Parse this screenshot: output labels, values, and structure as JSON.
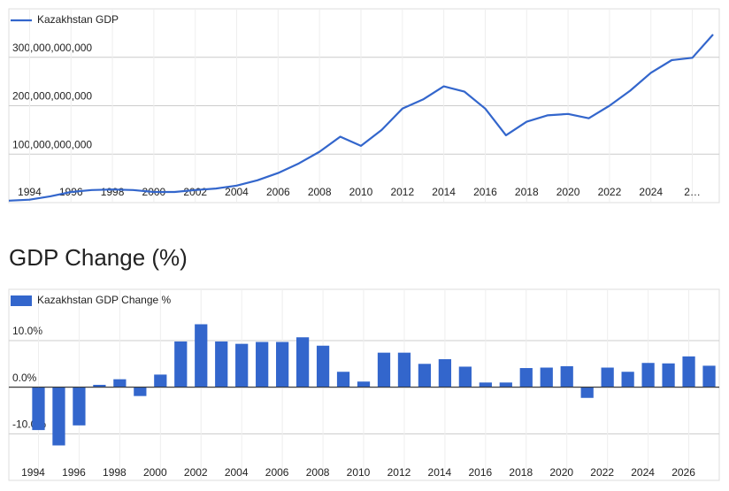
{
  "chart_data": [
    {
      "type": "line",
      "x": [
        1993,
        1994,
        1995,
        1996,
        1997,
        1998,
        1999,
        2000,
        2001,
        2002,
        2003,
        2004,
        2005,
        2006,
        2007,
        2008,
        2009,
        2010,
        2011,
        2012,
        2013,
        2014,
        2015,
        2016,
        2017,
        2018,
        2019,
        2020,
        2021,
        2022,
        2023,
        2024,
        2025,
        2026,
        2027
      ],
      "series": [
        {
          "name": "Kazakhstan GDP",
          "color": "#3366cc",
          "values": [
            4000000000,
            6000000000,
            13000000000,
            22000000000,
            26000000000,
            27000000000,
            26000000000,
            22000000000,
            22000000000,
            26000000000,
            29000000000,
            35000000000,
            46000000000,
            61000000000,
            81000000000,
            105000000000,
            136000000000,
            117000000000,
            150000000000,
            194000000000,
            213000000000,
            240000000000,
            229000000000,
            194000000000,
            139000000000,
            167000000000,
            180000000000,
            183000000000,
            174000000000,
            200000000000,
            231000000000,
            268000000000,
            294000000000,
            299000000000,
            347000000000
          ]
        }
      ],
      "xlim": [
        1993,
        2027.3
      ],
      "xticks": [
        1994,
        1996,
        1998,
        2000,
        2002,
        2004,
        2006,
        2008,
        2010,
        2012,
        2014,
        2016,
        2018,
        2020,
        2022,
        2024,
        {
          "value": 2026,
          "label": "2…"
        }
      ],
      "ylim": [
        0,
        400000000000
      ],
      "yticks": [
        {
          "value": 100000000000,
          "label": "100,000,000,000"
        },
        {
          "value": 200000000000,
          "label": "200,000,000,000"
        },
        {
          "value": 300000000000,
          "label": "300,000,000,000"
        }
      ],
      "grid": true,
      "legend": "top-left"
    },
    {
      "type": "bar",
      "title": "GDP Change (%)",
      "categories": [
        "1994",
        null,
        "1996",
        null,
        "1998",
        null,
        "2000",
        null,
        "2002",
        null,
        "2004",
        null,
        "2006",
        null,
        "2008",
        null,
        "2010",
        null,
        "2012",
        null,
        "2014",
        null,
        "2016",
        null,
        "2018",
        null,
        "2020",
        null,
        "2022",
        null,
        "2024",
        null,
        "2026",
        null
      ],
      "series": [
        {
          "name": "Kazakhstan GDP Change %",
          "color": "#3366cc",
          "values": [
            -9.2,
            -12.5,
            -8.2,
            0.5,
            1.7,
            -1.9,
            2.7,
            9.8,
            13.5,
            9.8,
            9.3,
            9.7,
            9.7,
            10.7,
            8.9,
            3.3,
            1.2,
            7.4,
            7.4,
            5.0,
            6.0,
            4.4,
            1.0,
            1.0,
            4.1,
            4.2,
            4.5,
            -2.3,
            4.2,
            3.3,
            5.2,
            5.1,
            6.6,
            4.6
          ]
        }
      ],
      "ylim": [
        -20,
        21
      ],
      "yticks": [
        {
          "value": -10,
          "label": "-10.0%"
        },
        {
          "value": 0,
          "label": "0.0%"
        },
        {
          "value": 10,
          "label": "10.0%"
        }
      ],
      "grid": true,
      "legend": "top-left"
    }
  ]
}
